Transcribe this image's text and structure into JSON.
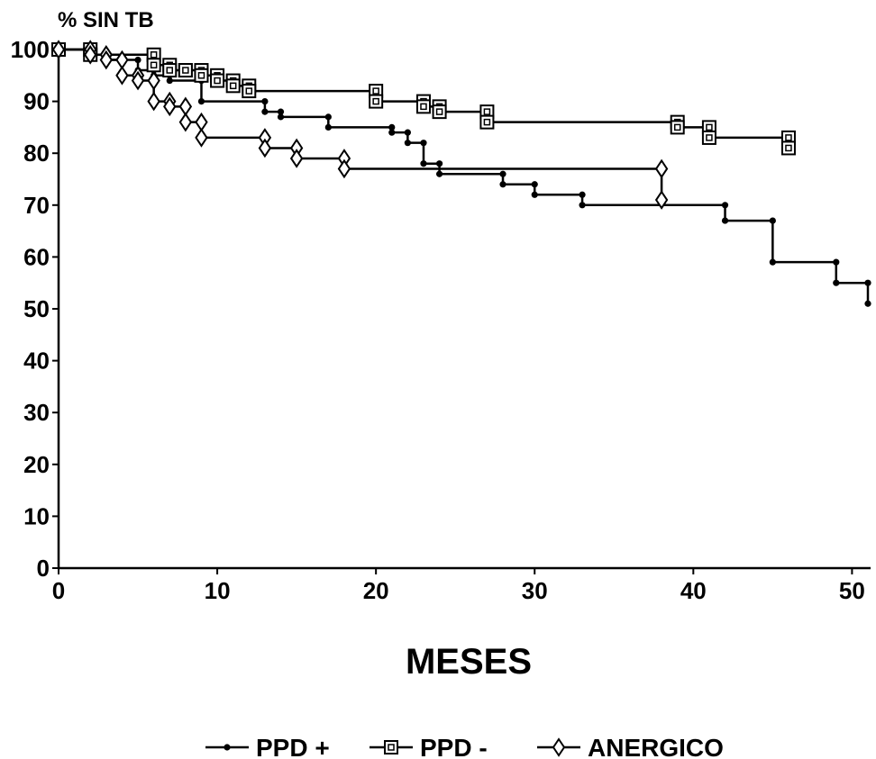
{
  "chart_data": {
    "type": "line",
    "title": "",
    "ylabel": "% SIN TB",
    "xlabel": "MESES",
    "xlim": [
      0,
      51
    ],
    "ylim": [
      0,
      100
    ],
    "x_ticks": [
      0,
      10,
      20,
      30,
      40,
      50
    ],
    "y_ticks": [
      0,
      10,
      20,
      30,
      40,
      50,
      60,
      70,
      80,
      90,
      100
    ],
    "grid": false,
    "legend_position": "bottom",
    "series": [
      {
        "name": "PPD +",
        "marker": "dot",
        "points": [
          [
            0,
            100
          ],
          [
            2,
            99
          ],
          [
            3,
            98
          ],
          [
            5,
            96
          ],
          [
            6,
            95
          ],
          [
            7,
            94
          ],
          [
            9,
            90
          ],
          [
            13,
            88
          ],
          [
            14,
            87
          ],
          [
            17,
            85
          ],
          [
            21,
            84
          ],
          [
            22,
            82
          ],
          [
            23,
            78
          ],
          [
            24,
            76
          ],
          [
            28,
            74
          ],
          [
            30,
            72
          ],
          [
            33,
            70
          ],
          [
            42,
            67
          ],
          [
            45,
            59
          ],
          [
            49,
            55
          ],
          [
            51,
            51
          ]
        ]
      },
      {
        "name": "PPD -",
        "marker": "square",
        "points": [
          [
            0,
            100
          ],
          [
            2,
            99
          ],
          [
            6,
            97
          ],
          [
            7,
            96
          ],
          [
            8,
            96
          ],
          [
            9,
            95
          ],
          [
            10,
            94
          ],
          [
            11,
            93
          ],
          [
            12,
            92
          ],
          [
            20,
            90
          ],
          [
            23,
            89
          ],
          [
            24,
            88
          ],
          [
            27,
            86
          ],
          [
            39,
            85
          ],
          [
            41,
            83
          ],
          [
            46,
            81
          ]
        ]
      },
      {
        "name": "ANERGICO",
        "marker": "diamond",
        "points": [
          [
            0,
            100
          ],
          [
            2,
            99
          ],
          [
            3,
            98
          ],
          [
            4,
            95
          ],
          [
            5,
            94
          ],
          [
            6,
            90
          ],
          [
            7,
            89
          ],
          [
            8,
            86
          ],
          [
            9,
            83
          ],
          [
            13,
            81
          ],
          [
            15,
            79
          ],
          [
            18,
            77
          ],
          [
            38,
            71
          ]
        ]
      }
    ]
  }
}
